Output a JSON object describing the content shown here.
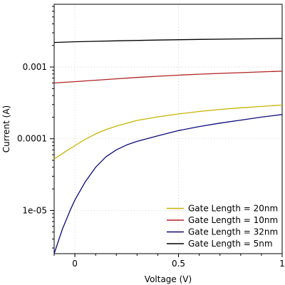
{
  "chart_data": {
    "type": "line",
    "title": "",
    "xlabel": "Voltage (V)",
    "ylabel": "Current (A)",
    "xscale": "linear",
    "yscale": "log",
    "xlim": [
      -0.1,
      1.0
    ],
    "ylim": [
      2.5e-06,
      0.0075
    ],
    "xticks": [
      0,
      0.5,
      1
    ],
    "xtick_labels": [
      "0",
      "0.5",
      "1"
    ],
    "yticks": [
      1e-05,
      0.0001,
      0.001
    ],
    "ytick_labels": [
      "1e-05",
      "0.0001",
      "0.001"
    ],
    "grid": true,
    "legend_position": "bottom-right",
    "series": [
      {
        "name": "Gate Length = 20nm",
        "color": "#c8b400",
        "x": [
          -0.1,
          -0.05,
          0.0,
          0.05,
          0.1,
          0.15,
          0.2,
          0.3,
          0.4,
          0.5,
          0.6,
          0.7,
          0.8,
          0.9,
          1.0
        ],
        "y": [
          5.2e-05,
          6.5e-05,
          8e-05,
          9.8e-05,
          0.000117,
          0.000134,
          0.00015,
          0.00018,
          0.000202,
          0.000222,
          0.00024,
          0.000256,
          0.00027,
          0.000282,
          0.000295
        ]
      },
      {
        "name": "Gate Length = 10nm",
        "color": "#b22222",
        "x": [
          -0.1,
          0.0,
          0.1,
          0.2,
          0.3,
          0.4,
          0.5,
          0.6,
          0.7,
          0.8,
          0.9,
          1.0
        ],
        "y": [
          0.0006,
          0.000625,
          0.000655,
          0.000685,
          0.000715,
          0.000745,
          0.00077,
          0.000795,
          0.000815,
          0.000835,
          0.000855,
          0.000875
        ]
      },
      {
        "name": "Gate Length = 32nm",
        "color": "#0b0b7a",
        "x": [
          -0.1,
          -0.06,
          -0.02,
          0.0,
          0.05,
          0.1,
          0.15,
          0.2,
          0.25,
          0.3,
          0.4,
          0.5,
          0.6,
          0.7,
          0.8,
          0.9,
          1.0
        ],
        "y": [
          2.5e-06,
          5.5e-06,
          1.05e-05,
          1.4e-05,
          2.5e-05,
          4e-05,
          5.6e-05,
          7e-05,
          8.2e-05,
          9.2e-05,
          0.00011,
          0.00013,
          0.000148,
          0.000165,
          0.000182,
          0.0002,
          0.000218
        ]
      },
      {
        "name": "Gate Length = 5nm",
        "color": "#000000",
        "x": [
          -0.1,
          0.0,
          0.2,
          0.4,
          0.6,
          0.8,
          1.0
        ],
        "y": [
          0.0022,
          0.00225,
          0.00232,
          0.00238,
          0.00243,
          0.00247,
          0.0025
        ]
      }
    ]
  }
}
